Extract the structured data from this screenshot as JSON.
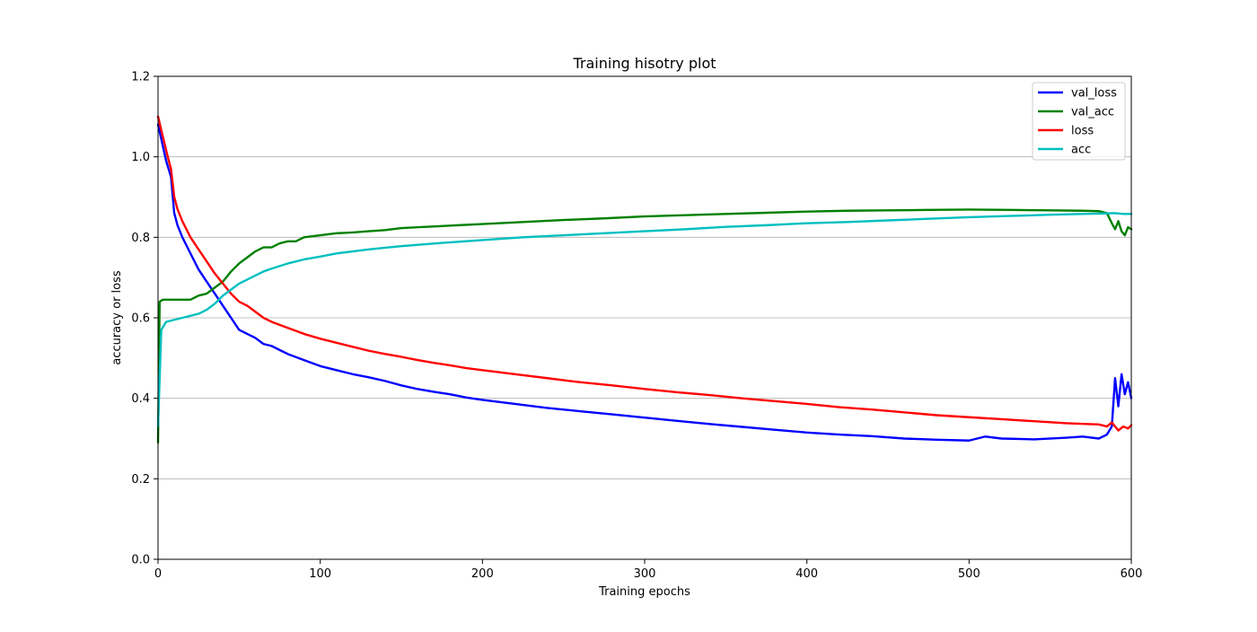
{
  "chart_data": {
    "type": "line",
    "title": "Training hisotry plot",
    "xlabel": "Training epochs",
    "ylabel": "accuracy or loss",
    "xlim": [
      0,
      600
    ],
    "ylim": [
      0.0,
      1.2
    ],
    "x_ticks": [
      0,
      100,
      200,
      300,
      400,
      500,
      600
    ],
    "y_ticks": [
      0.0,
      0.2,
      0.4,
      0.6,
      0.8,
      1.0,
      1.2
    ],
    "x_tick_labels": [
      "0",
      "100",
      "200",
      "300",
      "400",
      "500",
      "600"
    ],
    "y_tick_labels": [
      "0.0",
      "0.2",
      "0.4",
      "0.6",
      "0.8",
      "1.0",
      "1.2"
    ],
    "grid": "horizontal",
    "legend_position": "top-right",
    "series": [
      {
        "name": "val_loss",
        "color": "#0000ff",
        "points": [
          [
            0,
            1.08
          ],
          [
            5,
            0.99
          ],
          [
            8,
            0.95
          ],
          [
            10,
            0.86
          ],
          [
            12,
            0.83
          ],
          [
            15,
            0.8
          ],
          [
            20,
            0.76
          ],
          [
            25,
            0.72
          ],
          [
            30,
            0.69
          ],
          [
            35,
            0.66
          ],
          [
            40,
            0.63
          ],
          [
            45,
            0.6
          ],
          [
            50,
            0.57
          ],
          [
            55,
            0.56
          ],
          [
            60,
            0.55
          ],
          [
            65,
            0.535
          ],
          [
            70,
            0.53
          ],
          [
            75,
            0.52
          ],
          [
            80,
            0.51
          ],
          [
            90,
            0.495
          ],
          [
            100,
            0.48
          ],
          [
            110,
            0.47
          ],
          [
            120,
            0.46
          ],
          [
            130,
            0.452
          ],
          [
            140,
            0.443
          ],
          [
            150,
            0.432
          ],
          [
            160,
            0.423
          ],
          [
            170,
            0.416
          ],
          [
            180,
            0.41
          ],
          [
            190,
            0.402
          ],
          [
            200,
            0.396
          ],
          [
            220,
            0.386
          ],
          [
            240,
            0.376
          ],
          [
            260,
            0.368
          ],
          [
            280,
            0.36
          ],
          [
            300,
            0.352
          ],
          [
            320,
            0.344
          ],
          [
            340,
            0.336
          ],
          [
            360,
            0.329
          ],
          [
            380,
            0.322
          ],
          [
            400,
            0.315
          ],
          [
            420,
            0.31
          ],
          [
            440,
            0.306
          ],
          [
            460,
            0.3
          ],
          [
            480,
            0.297
          ],
          [
            500,
            0.295
          ],
          [
            510,
            0.305
          ],
          [
            520,
            0.3
          ],
          [
            540,
            0.298
          ],
          [
            560,
            0.302
          ],
          [
            570,
            0.305
          ],
          [
            580,
            0.3
          ],
          [
            585,
            0.31
          ],
          [
            588,
            0.33
          ],
          [
            590,
            0.45
          ],
          [
            592,
            0.38
          ],
          [
            594,
            0.46
          ],
          [
            596,
            0.41
          ],
          [
            598,
            0.44
          ],
          [
            600,
            0.4
          ]
        ]
      },
      {
        "name": "val_acc",
        "color": "#008000",
        "points": [
          [
            0,
            0.29
          ],
          [
            1,
            0.64
          ],
          [
            3,
            0.645
          ],
          [
            10,
            0.645
          ],
          [
            20,
            0.645
          ],
          [
            25,
            0.655
          ],
          [
            30,
            0.66
          ],
          [
            35,
            0.675
          ],
          [
            40,
            0.69
          ],
          [
            45,
            0.715
          ],
          [
            50,
            0.735
          ],
          [
            55,
            0.75
          ],
          [
            60,
            0.765
          ],
          [
            65,
            0.775
          ],
          [
            70,
            0.775
          ],
          [
            75,
            0.785
          ],
          [
            80,
            0.79
          ],
          [
            85,
            0.79
          ],
          [
            90,
            0.8
          ],
          [
            100,
            0.805
          ],
          [
            110,
            0.81
          ],
          [
            120,
            0.812
          ],
          [
            130,
            0.815
          ],
          [
            140,
            0.818
          ],
          [
            150,
            0.823
          ],
          [
            175,
            0.828
          ],
          [
            200,
            0.833
          ],
          [
            225,
            0.838
          ],
          [
            250,
            0.843
          ],
          [
            275,
            0.847
          ],
          [
            300,
            0.852
          ],
          [
            325,
            0.855
          ],
          [
            350,
            0.858
          ],
          [
            375,
            0.861
          ],
          [
            400,
            0.864
          ],
          [
            425,
            0.866
          ],
          [
            450,
            0.867
          ],
          [
            475,
            0.868
          ],
          [
            500,
            0.869
          ],
          [
            525,
            0.868
          ],
          [
            550,
            0.867
          ],
          [
            570,
            0.866
          ],
          [
            580,
            0.865
          ],
          [
            585,
            0.86
          ],
          [
            588,
            0.835
          ],
          [
            590,
            0.82
          ],
          [
            592,
            0.84
          ],
          [
            594,
            0.815
          ],
          [
            596,
            0.805
          ],
          [
            598,
            0.825
          ],
          [
            600,
            0.82
          ]
        ]
      },
      {
        "name": "loss",
        "color": "#ff0000",
        "points": [
          [
            0,
            1.1
          ],
          [
            3,
            1.05
          ],
          [
            6,
            1.0
          ],
          [
            8,
            0.97
          ],
          [
            10,
            0.9
          ],
          [
            12,
            0.87
          ],
          [
            15,
            0.84
          ],
          [
            20,
            0.8
          ],
          [
            25,
            0.77
          ],
          [
            30,
            0.74
          ],
          [
            35,
            0.71
          ],
          [
            40,
            0.685
          ],
          [
            45,
            0.66
          ],
          [
            50,
            0.64
          ],
          [
            55,
            0.63
          ],
          [
            60,
            0.615
          ],
          [
            65,
            0.6
          ],
          [
            70,
            0.59
          ],
          [
            80,
            0.575
          ],
          [
            90,
            0.56
          ],
          [
            100,
            0.548
          ],
          [
            110,
            0.538
          ],
          [
            120,
            0.528
          ],
          [
            130,
            0.518
          ],
          [
            140,
            0.51
          ],
          [
            150,
            0.503
          ],
          [
            160,
            0.495
          ],
          [
            170,
            0.488
          ],
          [
            180,
            0.482
          ],
          [
            190,
            0.475
          ],
          [
            200,
            0.47
          ],
          [
            220,
            0.46
          ],
          [
            240,
            0.45
          ],
          [
            260,
            0.44
          ],
          [
            280,
            0.432
          ],
          [
            300,
            0.423
          ],
          [
            320,
            0.415
          ],
          [
            340,
            0.408
          ],
          [
            360,
            0.4
          ],
          [
            380,
            0.393
          ],
          [
            400,
            0.386
          ],
          [
            420,
            0.378
          ],
          [
            440,
            0.372
          ],
          [
            460,
            0.365
          ],
          [
            480,
            0.358
          ],
          [
            500,
            0.353
          ],
          [
            520,
            0.348
          ],
          [
            540,
            0.343
          ],
          [
            560,
            0.338
          ],
          [
            580,
            0.335
          ],
          [
            585,
            0.33
          ],
          [
            588,
            0.34
          ],
          [
            590,
            0.33
          ],
          [
            592,
            0.32
          ],
          [
            595,
            0.33
          ],
          [
            598,
            0.325
          ],
          [
            600,
            0.333
          ]
        ]
      },
      {
        "name": "acc",
        "color": "#00bfbf",
        "points": [
          [
            0,
            0.33
          ],
          [
            2,
            0.57
          ],
          [
            5,
            0.59
          ],
          [
            10,
            0.595
          ],
          [
            15,
            0.6
          ],
          [
            20,
            0.605
          ],
          [
            25,
            0.61
          ],
          [
            30,
            0.62
          ],
          [
            35,
            0.635
          ],
          [
            40,
            0.655
          ],
          [
            45,
            0.67
          ],
          [
            50,
            0.685
          ],
          [
            55,
            0.695
          ],
          [
            60,
            0.705
          ],
          [
            65,
            0.715
          ],
          [
            70,
            0.722
          ],
          [
            80,
            0.735
          ],
          [
            90,
            0.745
          ],
          [
            100,
            0.752
          ],
          [
            110,
            0.76
          ],
          [
            120,
            0.765
          ],
          [
            130,
            0.77
          ],
          [
            140,
            0.774
          ],
          [
            150,
            0.778
          ],
          [
            175,
            0.786
          ],
          [
            200,
            0.793
          ],
          [
            225,
            0.8
          ],
          [
            250,
            0.805
          ],
          [
            275,
            0.81
          ],
          [
            300,
            0.815
          ],
          [
            325,
            0.82
          ],
          [
            350,
            0.826
          ],
          [
            375,
            0.83
          ],
          [
            400,
            0.835
          ],
          [
            425,
            0.838
          ],
          [
            450,
            0.842
          ],
          [
            475,
            0.846
          ],
          [
            500,
            0.85
          ],
          [
            525,
            0.853
          ],
          [
            550,
            0.856
          ],
          [
            570,
            0.858
          ],
          [
            580,
            0.859
          ],
          [
            590,
            0.86
          ],
          [
            595,
            0.858
          ],
          [
            600,
            0.858
          ]
        ]
      }
    ]
  }
}
